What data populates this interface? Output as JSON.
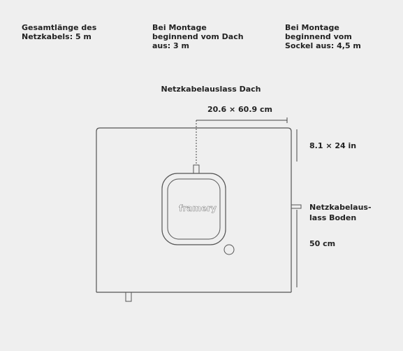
{
  "notes": [
    {
      "lines": [
        "Gesamtlänge des",
        "Netzkabels: 5 m"
      ]
    },
    {
      "lines": [
        "Bei Montage",
        "beginnend vom Dach",
        "aus: 3 m"
      ]
    },
    {
      "lines": [
        "Bei Montage",
        "beginnend vom",
        "Sockel aus: 4,5 m"
      ]
    }
  ],
  "top_outlet": {
    "title": "Netzkabelauslass Dach",
    "dimension_cm": "20.6 × 60.9 cm",
    "dimension_in": "8.1 × 24 in"
  },
  "bottom_outlet": {
    "lines": [
      "Netzkabelaus-",
      "lass Boden"
    ],
    "dimension": "50 cm"
  },
  "device": {
    "logo": "framery"
  }
}
